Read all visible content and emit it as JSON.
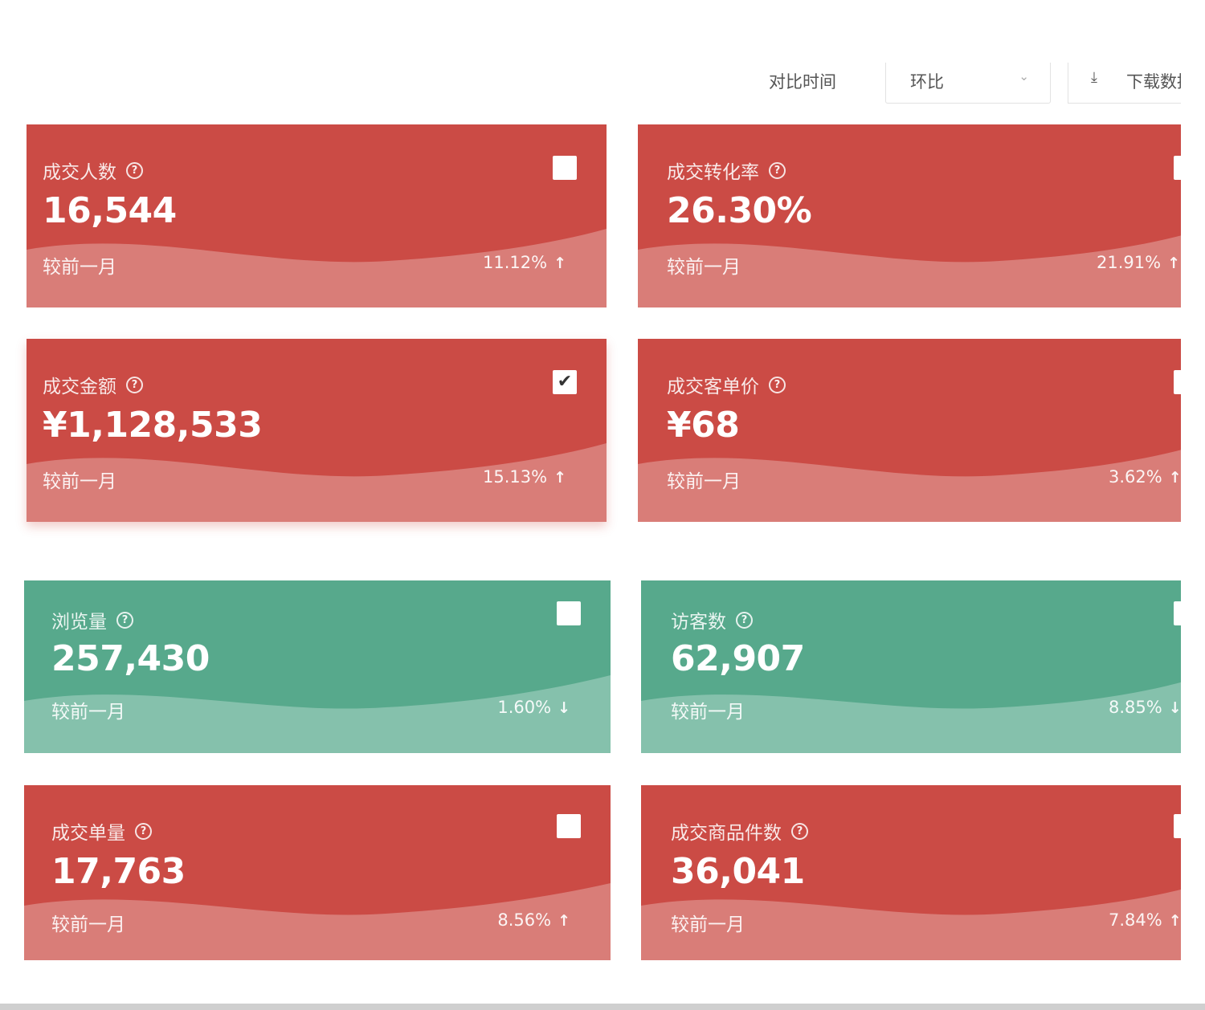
{
  "toolbar": {
    "compare_label": "对比时间",
    "compare_value": "环比",
    "download_label": "下载数据"
  },
  "colors": {
    "red_card": "#cb4b45",
    "green_card": "#57a98c"
  },
  "cards": [
    {
      "title": "成交人数",
      "value": "16,544",
      "period": "较前一月",
      "change": "11.12%",
      "direction": "up",
      "arrow": "↑",
      "checked": false,
      "color": "red"
    },
    {
      "title": "成交转化率",
      "value": "26.30%",
      "period": "较前一月",
      "change": "21.91%",
      "direction": "up",
      "arrow": "↑",
      "checked": false,
      "color": "red"
    },
    {
      "title": "成交金额",
      "value": "¥1,128,533",
      "period": "较前一月",
      "change": "15.13%",
      "direction": "up",
      "arrow": "↑",
      "checked": true,
      "check_glyph": "✔",
      "color": "red"
    },
    {
      "title": "成交客单价",
      "value": "¥68",
      "period": "较前一月",
      "change": "3.62%",
      "direction": "up",
      "arrow": "↑",
      "checked": false,
      "color": "red"
    },
    {
      "title": "浏览量",
      "value": "257,430",
      "period": "较前一月",
      "change": "1.60%",
      "direction": "down",
      "arrow": "↓",
      "checked": false,
      "color": "green"
    },
    {
      "title": "访客数",
      "value": "62,907",
      "period": "较前一月",
      "change": "8.85%",
      "direction": "down",
      "arrow": "↓",
      "checked": false,
      "color": "green"
    },
    {
      "title": "成交单量",
      "value": "17,763",
      "period": "较前一月",
      "change": "8.56%",
      "direction": "up",
      "arrow": "↑",
      "checked": false,
      "color": "red"
    },
    {
      "title": "成交商品件数",
      "value": "36,041",
      "period": "较前一月",
      "change": "7.84%",
      "direction": "up",
      "arrow": "↑",
      "checked": false,
      "color": "red"
    }
  ]
}
